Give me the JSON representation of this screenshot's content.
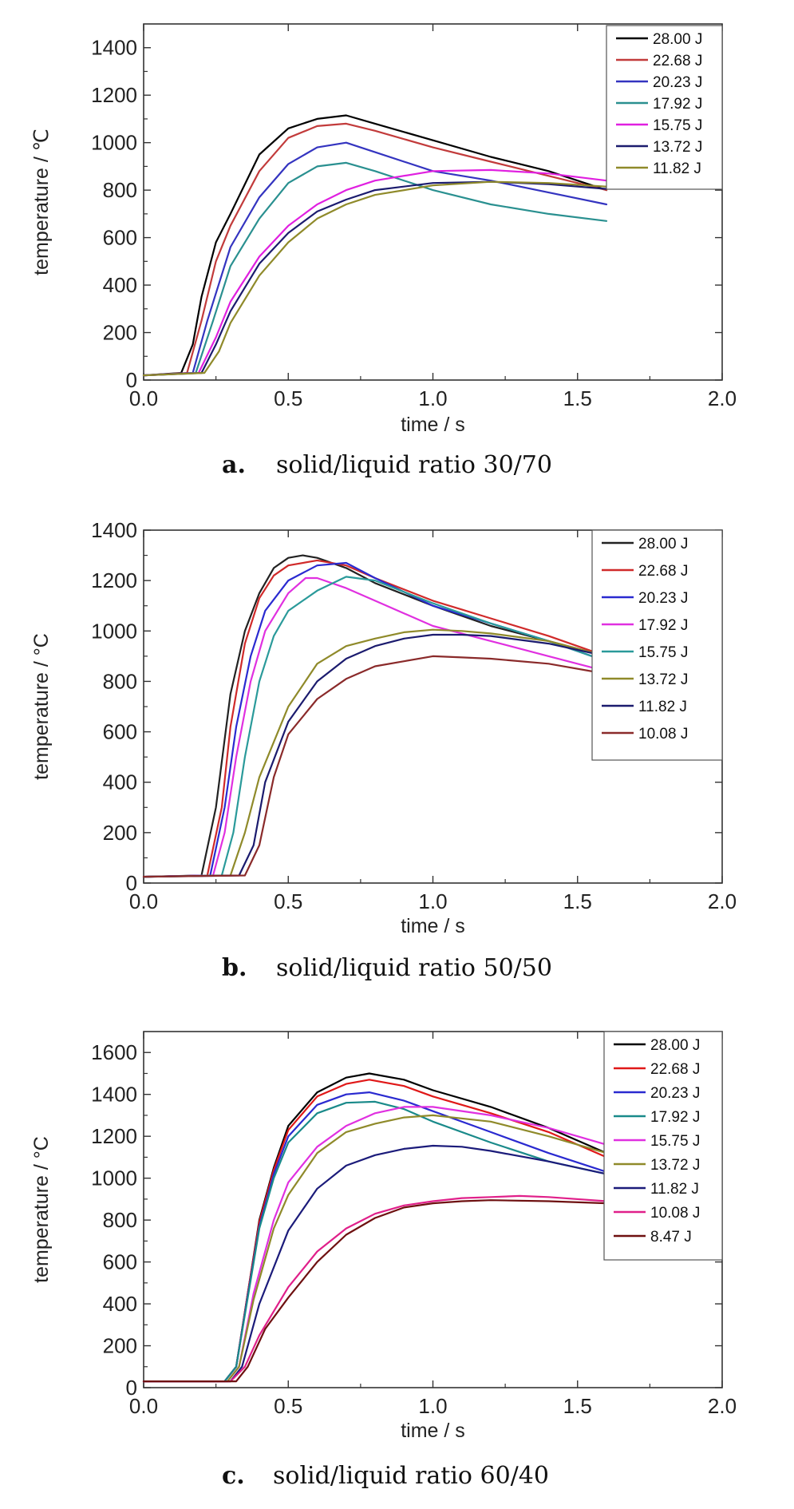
{
  "chart_data": [
    {
      "type": "line",
      "caption_letter": "a.",
      "caption_text": "solid/liquid ratio 30/70",
      "xlabel": "time / s",
      "ylabel": "temperature / ℃",
      "xlim": [
        0,
        2
      ],
      "ylim": [
        0,
        1500
      ],
      "xticks": [
        "0.0",
        "0.5",
        "1.0",
        "1.5",
        "2.0"
      ],
      "yticks": [
        "0",
        "200",
        "400",
        "600",
        "800",
        "1000",
        "1200",
        "1400"
      ],
      "legend_position": "top-right",
      "series": [
        {
          "name": "28.00 J",
          "color": "#000000",
          "x": [
            0,
            0.13,
            0.17,
            0.2,
            0.25,
            0.3,
            0.4,
            0.5,
            0.6,
            0.7,
            0.8,
            1.0,
            1.2,
            1.4,
            1.6
          ],
          "y": [
            20,
            30,
            150,
            350,
            580,
            700,
            950,
            1060,
            1100,
            1115,
            1080,
            1010,
            940,
            880,
            800
          ]
        },
        {
          "name": "22.68 J",
          "color": "#c23b3b",
          "x": [
            0,
            0.15,
            0.2,
            0.25,
            0.3,
            0.4,
            0.5,
            0.6,
            0.7,
            0.8,
            1.0,
            1.2,
            1.4,
            1.6
          ],
          "y": [
            20,
            30,
            250,
            500,
            650,
            880,
            1020,
            1070,
            1080,
            1050,
            980,
            920,
            860,
            800
          ]
        },
        {
          "name": "20.23 J",
          "color": "#3434c0",
          "x": [
            0,
            0.17,
            0.22,
            0.3,
            0.4,
            0.5,
            0.6,
            0.7,
            0.8,
            1.0,
            1.2,
            1.4,
            1.6
          ],
          "y": [
            20,
            30,
            250,
            560,
            770,
            910,
            980,
            1000,
            960,
            880,
            840,
            790,
            740
          ]
        },
        {
          "name": "17.92 J",
          "color": "#2a9090",
          "x": [
            0,
            0.18,
            0.24,
            0.3,
            0.4,
            0.5,
            0.6,
            0.7,
            0.8,
            1.0,
            1.2,
            1.4,
            1.6
          ],
          "y": [
            20,
            30,
            250,
            480,
            680,
            830,
            900,
            915,
            880,
            800,
            740,
            700,
            670
          ]
        },
        {
          "name": "15.75 J",
          "color": "#e020e0",
          "x": [
            0,
            0.19,
            0.25,
            0.3,
            0.4,
            0.5,
            0.6,
            0.7,
            0.8,
            1.0,
            1.2,
            1.4,
            1.6
          ],
          "y": [
            20,
            30,
            180,
            330,
            520,
            650,
            740,
            800,
            840,
            880,
            885,
            870,
            840
          ]
        },
        {
          "name": "13.72 J",
          "color": "#1b1b6e",
          "x": [
            0,
            0.2,
            0.25,
            0.3,
            0.4,
            0.5,
            0.6,
            0.7,
            0.8,
            1.0,
            1.2,
            1.4,
            1.6
          ],
          "y": [
            20,
            30,
            150,
            290,
            490,
            620,
            710,
            760,
            800,
            830,
            835,
            825,
            805
          ]
        },
        {
          "name": "11.82 J",
          "color": "#8f8a2a",
          "x": [
            0,
            0.21,
            0.26,
            0.3,
            0.4,
            0.5,
            0.6,
            0.7,
            0.8,
            1.0,
            1.2,
            1.4,
            1.6
          ],
          "y": [
            20,
            30,
            120,
            240,
            440,
            580,
            680,
            740,
            780,
            820,
            835,
            830,
            815
          ]
        }
      ]
    },
    {
      "type": "line",
      "caption_letter": "b.",
      "caption_text": "solid/liquid ratio 50/50",
      "xlabel": "time / s",
      "ylabel": "temperature / °C",
      "xlim": [
        0,
        2
      ],
      "ylim": [
        0,
        1400
      ],
      "xticks": [
        "0.0",
        "0.5",
        "1.0",
        "1.5",
        "2.0"
      ],
      "yticks": [
        "0",
        "200",
        "400",
        "600",
        "800",
        "1000",
        "1200",
        "1400"
      ],
      "legend_position": "top-right",
      "series": [
        {
          "name": "28.00 J",
          "color": "#222222",
          "x": [
            0,
            0.2,
            0.25,
            0.3,
            0.35,
            0.4,
            0.45,
            0.5,
            0.55,
            0.6,
            0.7,
            0.8,
            1.0,
            1.2,
            1.4,
            1.6
          ],
          "y": [
            25,
            30,
            300,
            750,
            1000,
            1150,
            1250,
            1290,
            1300,
            1290,
            1250,
            1190,
            1100,
            1020,
            960,
            900
          ]
        },
        {
          "name": "22.68 J",
          "color": "#d02a2a",
          "x": [
            0,
            0.22,
            0.27,
            0.3,
            0.35,
            0.4,
            0.45,
            0.5,
            0.6,
            0.7,
            0.8,
            1.0,
            1.2,
            1.4,
            1.6
          ],
          "y": [
            25,
            30,
            300,
            620,
            950,
            1130,
            1220,
            1260,
            1280,
            1260,
            1210,
            1120,
            1050,
            980,
            900
          ]
        },
        {
          "name": "20.23 J",
          "color": "#2a2ad0",
          "x": [
            0,
            0.23,
            0.28,
            0.32,
            0.37,
            0.42,
            0.5,
            0.6,
            0.7,
            0.8,
            1.0,
            1.2,
            1.4,
            1.6
          ],
          "y": [
            25,
            30,
            300,
            620,
            900,
            1080,
            1200,
            1260,
            1270,
            1210,
            1100,
            1030,
            960,
            880
          ]
        },
        {
          "name": "17.92 J",
          "color": "#e030e0",
          "x": [
            0,
            0.24,
            0.28,
            0.32,
            0.37,
            0.42,
            0.5,
            0.56,
            0.6,
            0.7,
            0.8,
            1.0,
            1.2,
            1.4,
            1.6
          ],
          "y": [
            25,
            30,
            200,
            500,
            800,
            1000,
            1150,
            1210,
            1210,
            1170,
            1120,
            1020,
            960,
            900,
            840
          ]
        },
        {
          "name": "15.75 J",
          "color": "#2a9a9a",
          "x": [
            0,
            0.27,
            0.31,
            0.35,
            0.4,
            0.45,
            0.5,
            0.6,
            0.7,
            0.8,
            1.0,
            1.2,
            1.4,
            1.6
          ],
          "y": [
            25,
            30,
            200,
            500,
            800,
            980,
            1080,
            1160,
            1215,
            1200,
            1110,
            1030,
            960,
            880
          ]
        },
        {
          "name": "13.72 J",
          "color": "#8f8a2a",
          "x": [
            0,
            0.3,
            0.35,
            0.4,
            0.5,
            0.6,
            0.7,
            0.8,
            0.9,
            1.0,
            1.1,
            1.2,
            1.4,
            1.6
          ],
          "y": [
            25,
            30,
            200,
            420,
            700,
            870,
            940,
            970,
            995,
            1005,
            1000,
            990,
            960,
            900
          ]
        },
        {
          "name": "11.82 J",
          "color": "#1b1b6e",
          "x": [
            0,
            0.33,
            0.38,
            0.42,
            0.5,
            0.6,
            0.7,
            0.8,
            0.9,
            1.0,
            1.1,
            1.2,
            1.4,
            1.6
          ],
          "y": [
            25,
            30,
            150,
            400,
            640,
            800,
            890,
            940,
            970,
            985,
            985,
            980,
            950,
            900
          ]
        },
        {
          "name": "10.08 J",
          "color": "#8a2a2a",
          "x": [
            0,
            0.35,
            0.4,
            0.45,
            0.5,
            0.6,
            0.7,
            0.8,
            0.9,
            1.0,
            1.1,
            1.2,
            1.4,
            1.6
          ],
          "y": [
            25,
            30,
            150,
            420,
            590,
            730,
            810,
            860,
            880,
            900,
            895,
            890,
            870,
            830
          ]
        }
      ]
    },
    {
      "type": "line",
      "caption_letter": "c.",
      "caption_text": "solid/liquid ratio 60/40",
      "xlabel": "time / s",
      "ylabel": "temperature / °C",
      "xlim": [
        0,
        2
      ],
      "ylim": [
        0,
        1700
      ],
      "xticks": [
        "0.0",
        "0.5",
        "1.0",
        "1.5",
        "2.0"
      ],
      "yticks": [
        "0",
        "200",
        "400",
        "600",
        "800",
        "1000",
        "1200",
        "1400",
        "1600"
      ],
      "legend_position": "top-right",
      "series": [
        {
          "name": "28.00 J",
          "color": "#000000",
          "x": [
            0,
            0.28,
            0.32,
            0.36,
            0.4,
            0.45,
            0.5,
            0.6,
            0.7,
            0.78,
            0.9,
            1.0,
            1.2,
            1.4,
            1.6
          ],
          "y": [
            30,
            30,
            100,
            450,
            800,
            1050,
            1250,
            1410,
            1480,
            1500,
            1470,
            1420,
            1340,
            1240,
            1120
          ]
        },
        {
          "name": "22.68 J",
          "color": "#e01818",
          "x": [
            0,
            0.28,
            0.32,
            0.36,
            0.4,
            0.45,
            0.5,
            0.6,
            0.7,
            0.78,
            0.9,
            1.0,
            1.2,
            1.4,
            1.6
          ],
          "y": [
            30,
            30,
            100,
            450,
            790,
            1040,
            1230,
            1390,
            1450,
            1470,
            1440,
            1390,
            1310,
            1220,
            1100
          ]
        },
        {
          "name": "20.23 J",
          "color": "#2a2ad0",
          "x": [
            0,
            0.28,
            0.32,
            0.36,
            0.4,
            0.45,
            0.5,
            0.6,
            0.7,
            0.78,
            0.9,
            1.0,
            1.2,
            1.4,
            1.6
          ],
          "y": [
            30,
            30,
            100,
            440,
            770,
            1020,
            1200,
            1350,
            1400,
            1410,
            1370,
            1320,
            1220,
            1120,
            1030
          ]
        },
        {
          "name": "17.92 J",
          "color": "#1a8a8a",
          "x": [
            0,
            0.28,
            0.32,
            0.36,
            0.4,
            0.45,
            0.5,
            0.6,
            0.7,
            0.8,
            0.9,
            1.0,
            1.2,
            1.4,
            1.6
          ],
          "y": [
            30,
            30,
            100,
            430,
            760,
            1000,
            1170,
            1310,
            1360,
            1365,
            1330,
            1270,
            1170,
            1080,
            1020
          ]
        },
        {
          "name": "15.75 J",
          "color": "#e030e0",
          "x": [
            0,
            0.29,
            0.33,
            0.38,
            0.45,
            0.5,
            0.6,
            0.7,
            0.8,
            0.9,
            1.0,
            1.2,
            1.4,
            1.6
          ],
          "y": [
            30,
            30,
            100,
            450,
            800,
            980,
            1150,
            1250,
            1310,
            1340,
            1340,
            1300,
            1240,
            1160
          ]
        },
        {
          "name": "13.72 J",
          "color": "#8f8a2a",
          "x": [
            0,
            0.29,
            0.33,
            0.38,
            0.45,
            0.5,
            0.6,
            0.7,
            0.8,
            0.9,
            1.0,
            1.2,
            1.4,
            1.6
          ],
          "y": [
            30,
            30,
            100,
            420,
            760,
            920,
            1120,
            1220,
            1260,
            1290,
            1300,
            1270,
            1200,
            1120
          ]
        },
        {
          "name": "11.82 J",
          "color": "#1b1b7a",
          "x": [
            0,
            0.3,
            0.34,
            0.4,
            0.5,
            0.6,
            0.7,
            0.8,
            0.9,
            1.0,
            1.1,
            1.2,
            1.4,
            1.6
          ],
          "y": [
            30,
            30,
            100,
            400,
            750,
            950,
            1060,
            1110,
            1140,
            1155,
            1150,
            1130,
            1080,
            1020
          ]
        },
        {
          "name": "10.08 J",
          "color": "#e0208a",
          "x": [
            0,
            0.3,
            0.35,
            0.4,
            0.5,
            0.6,
            0.7,
            0.8,
            0.9,
            1.0,
            1.1,
            1.2,
            1.3,
            1.4,
            1.6
          ],
          "y": [
            30,
            30,
            100,
            250,
            480,
            650,
            760,
            830,
            870,
            890,
            905,
            910,
            915,
            910,
            890
          ]
        },
        {
          "name": "8.47 J",
          "color": "#6e1010",
          "x": [
            0,
            0.32,
            0.36,
            0.42,
            0.5,
            0.6,
            0.7,
            0.8,
            0.9,
            1.0,
            1.1,
            1.2,
            1.4,
            1.6
          ],
          "y": [
            30,
            30,
            100,
            280,
            430,
            600,
            730,
            810,
            860,
            880,
            890,
            895,
            890,
            880
          ]
        }
      ]
    }
  ]
}
